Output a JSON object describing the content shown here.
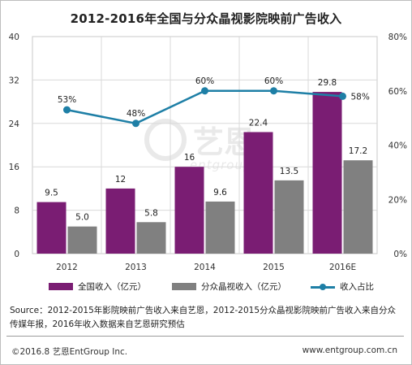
{
  "title": "2012-2016年全国与分众晶视影院映前广告收入",
  "chart_data": {
    "type": "bar",
    "categories": [
      "2012",
      "2013",
      "2014",
      "2015",
      "2016E"
    ],
    "series": [
      {
        "name": "全国收入（亿元）",
        "type": "bar",
        "axis": "left",
        "color": "#7a1d73",
        "values": [
          9.5,
          12,
          16,
          22.4,
          29.8
        ],
        "labels": [
          "9.5",
          "12",
          "16",
          "22.4",
          "29.8"
        ]
      },
      {
        "name": "分众晶视收入（亿元）",
        "type": "bar",
        "axis": "left",
        "color": "#808080",
        "values": [
          5.0,
          5.8,
          9.6,
          13.5,
          17.2
        ],
        "labels": [
          "5.0",
          "5.8",
          "9.6",
          "13.5",
          "17.2"
        ]
      },
      {
        "name": "收入占比",
        "type": "line",
        "axis": "right",
        "color": "#1e7fa6",
        "values": [
          53,
          48,
          60,
          60,
          58
        ],
        "labels": [
          "53%",
          "48%",
          "60%",
          "60%",
          "58%"
        ]
      }
    ],
    "y_left": {
      "range": [
        0,
        40
      ],
      "ticks": [
        "0",
        "8",
        "16",
        "24",
        "32",
        "40"
      ]
    },
    "y_right": {
      "range": [
        0,
        80
      ],
      "ticks": [
        "0%",
        "20%",
        "40%",
        "60%",
        "80%"
      ]
    },
    "grid": true,
    "legend_position": "bottom"
  },
  "watermark": {
    "brand": "艺恩",
    "sub": "entgroup"
  },
  "source": "Source：2012-2015年影院映前广告收入来自艺恩，2012-2015分众晶视影院映前广告收入来自分众传媒年报，2016年收入数据来自艺恩研究预估",
  "footer": {
    "left": "©2016.8  艺恩EntGroup Inc.",
    "right": "www.entgroup.com.cn"
  }
}
